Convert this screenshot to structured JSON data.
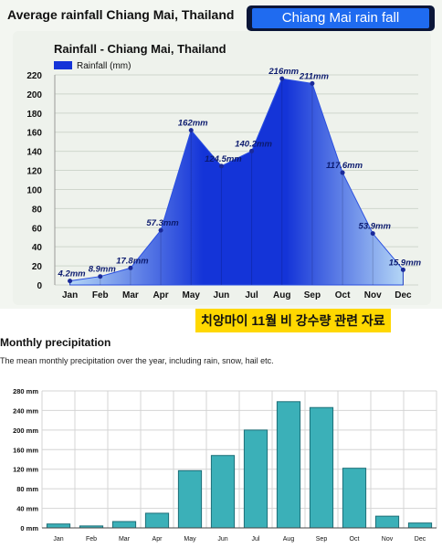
{
  "header": {
    "title": "Average rainfall Chiang Mai, Thailand",
    "badge": "Chiang Mai rain fall"
  },
  "korean_label": "치앙마이 11월 비 강수량 관련 자료",
  "section2": {
    "title": "Monthly precipitation",
    "description": "The mean monthly precipitation over the year, including rain, snow, hail etc."
  },
  "colors": {
    "area_dark": "#1434d8",
    "area_light": "#b4d6f6",
    "bar_fill": "#3bb0b8",
    "bar_stroke": "#1d6f78",
    "badge_bg": "#1f6bf0",
    "highlight": "#ffd800"
  },
  "chart_data": [
    {
      "type": "area",
      "title": "Rainfall - Chiang Mai, Thailand",
      "legend": "Rainfall (mm)",
      "legend_position": "top-left",
      "categories": [
        "Jan",
        "Feb",
        "Mar",
        "Apr",
        "May",
        "Jun",
        "Jul",
        "Aug",
        "Sep",
        "Oct",
        "Nov",
        "Dec"
      ],
      "values": [
        4.2,
        8.9,
        17.8,
        57.3,
        162,
        124.5,
        140.2,
        216,
        211,
        117.6,
        53.9,
        15.9
      ],
      "labels": [
        "4.2mm",
        "8.9mm",
        "17.8mm",
        "57.3mm",
        "162mm",
        "124.5mm",
        "140.2mm",
        "216mm",
        "211mm",
        "117.6mm",
        "53.9mm",
        "15.9mm"
      ],
      "ylim": [
        0,
        220
      ],
      "yticks": [
        0,
        20,
        40,
        60,
        80,
        100,
        120,
        140,
        160,
        180,
        200,
        220
      ],
      "grid": true
    },
    {
      "type": "bar",
      "categories": [
        "Jan",
        "Feb",
        "Mar",
        "Apr",
        "May",
        "Jun",
        "Jul",
        "Aug",
        "Sep",
        "Oct",
        "Nov",
        "Dec"
      ],
      "values": [
        8,
        4,
        13,
        30,
        117,
        148,
        200,
        258,
        246,
        122,
        24,
        10
      ],
      "ylim": [
        0,
        280
      ],
      "yticks": [
        0,
        40,
        80,
        120,
        160,
        200,
        240,
        280
      ],
      "ytick_labels": [
        "0 mm",
        "40 mm",
        "80 mm",
        "120 mm",
        "160 mm",
        "200 mm",
        "240 mm",
        "280 mm"
      ],
      "grid": true
    }
  ]
}
